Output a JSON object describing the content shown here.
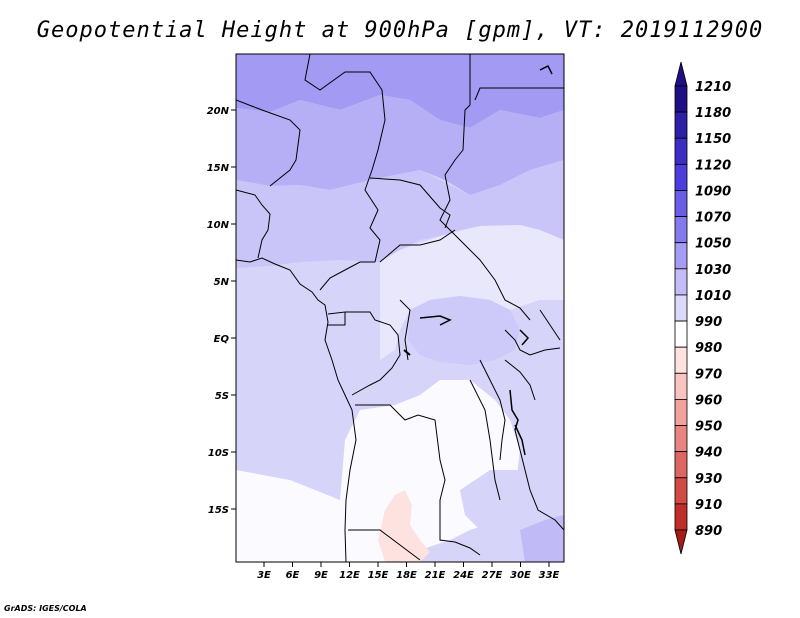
{
  "title": "Geopotential Height at 900hPa [gpm], VT: 2019112900",
  "credit": "GrADS: IGES/COLA",
  "lat_labels": [
    "20N",
    "15N",
    "10N",
    "5N",
    "EQ",
    "5S",
    "10S",
    "15S"
  ],
  "lon_labels": [
    "3E",
    "6E",
    "9E",
    "12E",
    "15E",
    "18E",
    "21E",
    "24E",
    "27E",
    "30E",
    "33E"
  ],
  "colorbar": {
    "levels": [
      "1210",
      "1180",
      "1150",
      "1120",
      "1090",
      "1070",
      "1050",
      "1030",
      "1010",
      "990",
      "980",
      "970",
      "960",
      "950",
      "940",
      "930",
      "910",
      "890"
    ],
    "colors": [
      "#1e0f87",
      "#2d1fa6",
      "#3c2ec4",
      "#4c3ede",
      "#6a5ee8",
      "#8579ee",
      "#a59cf3",
      "#c3bcf8",
      "#dcdafb",
      "#ffffff",
      "#fde2e0",
      "#f9c3bf",
      "#f2a29d",
      "#e98580",
      "#de6660",
      "#d24a44",
      "#be2f2a",
      "#a61d18"
    ]
  }
}
